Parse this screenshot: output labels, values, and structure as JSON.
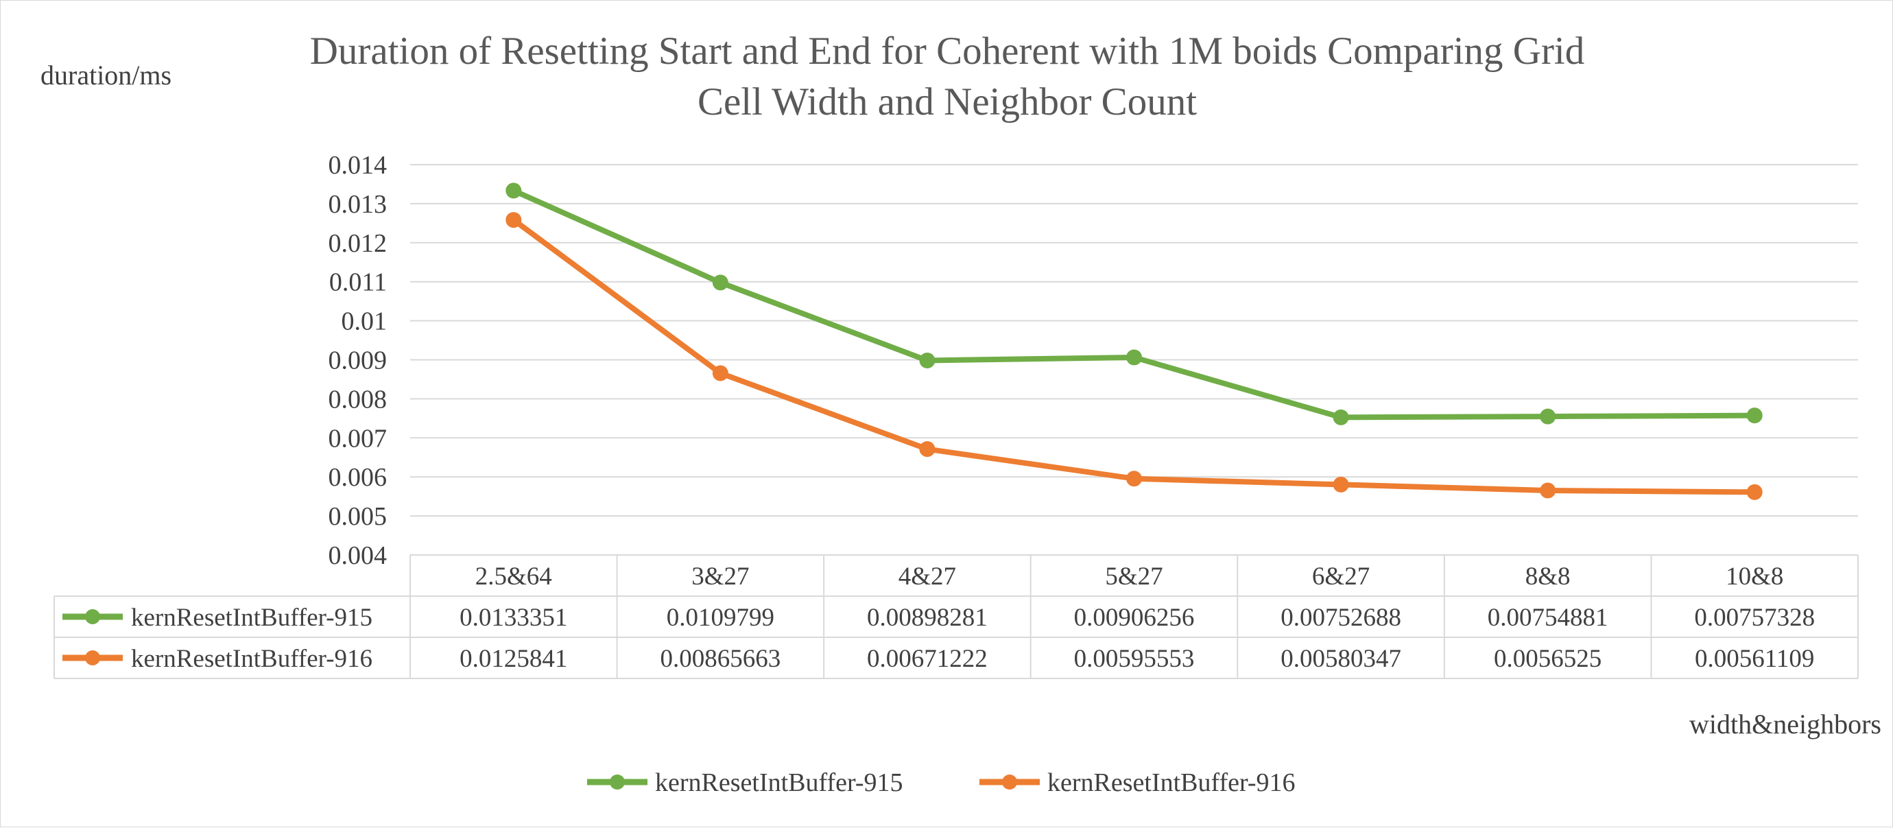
{
  "chart_data": {
    "type": "line",
    "title_line1": "Duration of Resetting Start and End for Coherent with 1M boids Comparing Grid",
    "title_line2": "Cell Width and Neighbor Count",
    "ylabel": "duration/ms",
    "xlabel": "width&neighbors",
    "ylim": [
      0.004,
      0.014
    ],
    "y_ticks": [
      "0.014",
      "0.013",
      "0.012",
      "0.011",
      "0.01",
      "0.009",
      "0.008",
      "0.007",
      "0.006",
      "0.005",
      "0.004"
    ],
    "grid": true,
    "legend_position": "bottom",
    "data_table": true,
    "categories": [
      "2.5&64",
      "3&27",
      "4&27",
      "5&27",
      "6&27",
      "8&8",
      "10&8"
    ],
    "series": [
      {
        "name": "kernResetIntBuffer-915",
        "color": "#70ad47",
        "values": [
          0.0133351,
          0.0109799,
          0.00898281,
          0.00906256,
          0.00752688,
          0.00754881,
          0.00757328
        ],
        "labels": [
          "0.0133351",
          "0.0109799",
          "0.00898281",
          "0.00906256",
          "0.00752688",
          "0.00754881",
          "0.00757328"
        ]
      },
      {
        "name": "kernResetIntBuffer-916",
        "color": "#ed7d31",
        "values": [
          0.0125841,
          0.00865663,
          0.00671222,
          0.00595553,
          0.00580347,
          0.0056525,
          0.00561109
        ],
        "labels": [
          "0.0125841",
          "0.00865663",
          "0.00671222",
          "0.00595553",
          "0.00580347",
          "0.0056525",
          "0.00561109"
        ]
      }
    ]
  }
}
